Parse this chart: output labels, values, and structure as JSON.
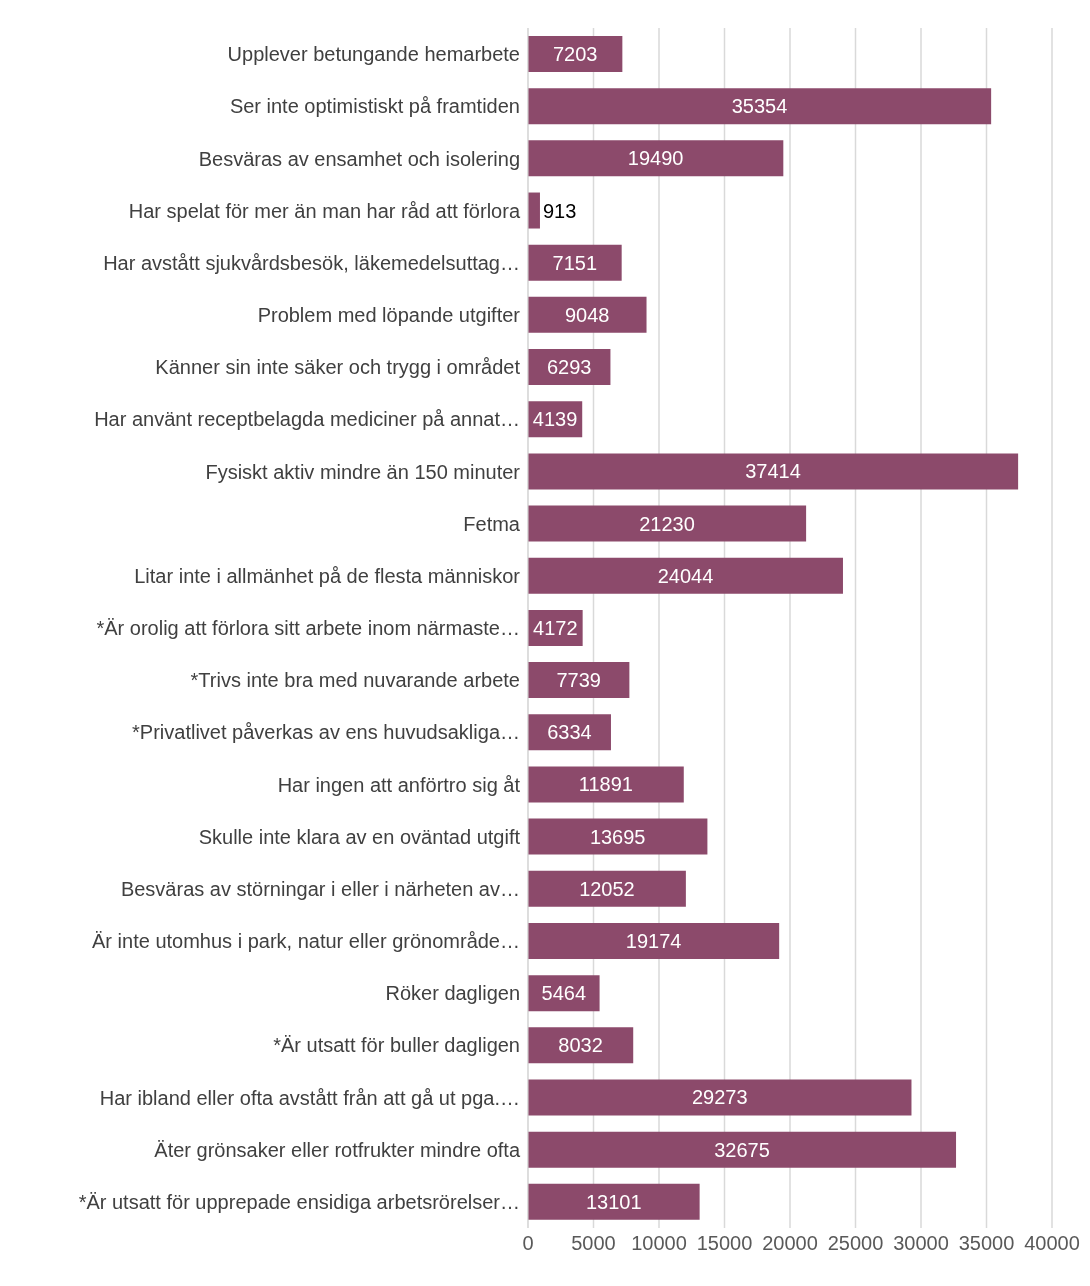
{
  "chart_data": {
    "type": "bar",
    "orientation": "horizontal",
    "categories": [
      "Upplever betungande hemarbete",
      "Ser inte optimistiskt på framtiden",
      "Besväras av ensamhet och isolering",
      "Har spelat för mer än man har råd att förlora",
      "Har avstått sjukvårdsbesök, läkemedelsuttag…",
      "Problem med löpande utgifter",
      "Känner sin inte säker och trygg i området",
      "Har använt receptbelagda mediciner på annat…",
      "Fysiskt aktiv mindre än 150 minuter",
      "Fetma",
      "Litar inte i allmänhet på de flesta människor",
      "*Är orolig att förlora sitt arbete inom närmaste…",
      "*Trivs inte bra med nuvarande arbete",
      "*Privatlivet påverkas av ens huvudsakliga…",
      "Har ingen att anförtro sig åt",
      "Skulle inte klara av en oväntad utgift",
      "Besväras av störningar i eller i närheten av…",
      "Är inte utomhus i park, natur eller grönområde…",
      "Röker dagligen",
      "*Är utsatt för buller dagligen",
      "Har ibland eller ofta avstått från att gå ut pga.…",
      "Äter grönsaker eller rotfrukter mindre ofta",
      "*Är utsatt för upprepade ensidiga arbetsrörelser…"
    ],
    "values": [
      7203,
      35354,
      19490,
      913,
      7151,
      9048,
      6293,
      4139,
      37414,
      21230,
      24044,
      4172,
      7739,
      6334,
      11891,
      13695,
      12052,
      19174,
      5464,
      8032,
      29273,
      32675,
      13101
    ],
    "color": "#8c4a6b",
    "xlim": [
      0,
      40000
    ],
    "xticks": [
      0,
      5000,
      10000,
      15000,
      20000,
      25000,
      30000,
      35000,
      40000
    ],
    "grid": "x",
    "data_labels": true
  }
}
